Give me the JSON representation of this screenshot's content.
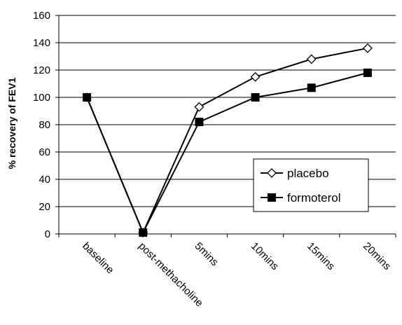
{
  "chart_data": {
    "type": "line",
    "title": "",
    "xlabel": "",
    "ylabel": "% recovery of FEV1",
    "categories": [
      "baseline",
      "post-methacholine",
      "5mins",
      "10mins",
      "15mins",
      "20mins"
    ],
    "series": [
      {
        "name": "placebo",
        "values": [
          100,
          1,
          93,
          115,
          128,
          136
        ],
        "marker": "open-diamond",
        "color": "#000000"
      },
      {
        "name": "formoterol",
        "values": [
          100,
          1,
          82,
          100,
          107,
          118
        ],
        "marker": "filled-square",
        "color": "#000000"
      }
    ],
    "ylim": [
      0,
      160
    ],
    "yticks": [
      0,
      20,
      40,
      60,
      80,
      100,
      120,
      140,
      160
    ],
    "grid": "horizontal",
    "legend_position": "lower-right inside plot"
  }
}
